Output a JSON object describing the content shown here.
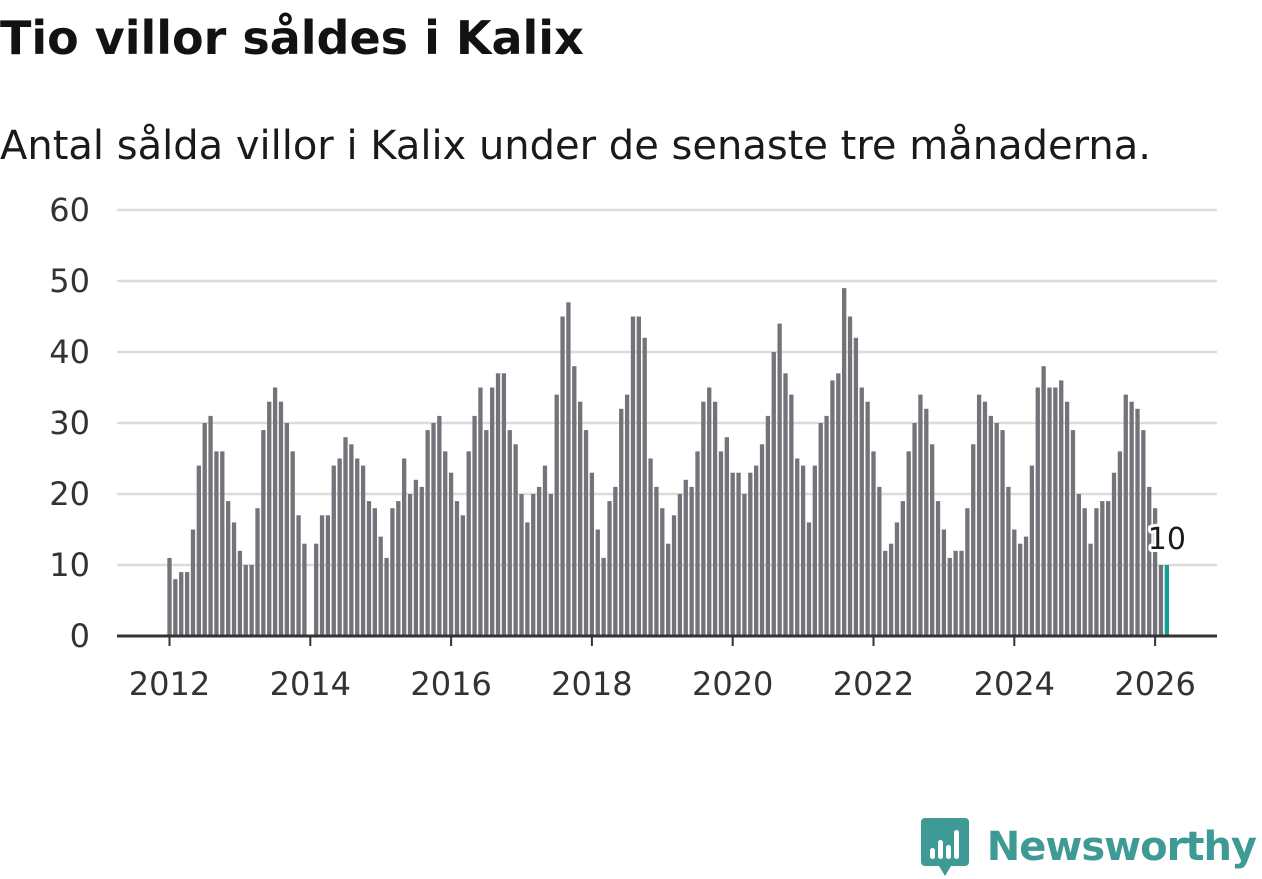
{
  "title": "Tio villor såldes i Kalix",
  "subtitle": "Antal sålda villor i Kalix under de senaste tre månaderna.",
  "brand": {
    "name": "Newsworthy",
    "icon": "newsworthy-logo-icon",
    "color": "#3d9a94"
  },
  "colors": {
    "bar": "#747379",
    "highlight": "#139c94",
    "grid": "#dcdcdc",
    "axis": "#333333"
  },
  "chart_data": {
    "type": "bar",
    "title": "Tio villor såldes i Kalix",
    "subtitle": "Antal sålda villor i Kalix under de senaste tre månaderna.",
    "xlabel": "",
    "ylabel": "",
    "ylim": [
      0,
      60
    ],
    "yticks": [
      "0",
      "10",
      "20",
      "30",
      "40",
      "50",
      "60"
    ],
    "xticks": [
      "2012",
      "2014",
      "2016",
      "2018",
      "2020",
      "2022",
      "2024",
      "2026"
    ],
    "grid": true,
    "start": "2012-01",
    "end": "2026-03",
    "frequency": "monthly",
    "values": [
      11,
      8,
      9,
      9,
      15,
      24,
      30,
      31,
      26,
      26,
      19,
      16,
      12,
      10,
      10,
      18,
      29,
      33,
      35,
      33,
      30,
      26,
      17,
      13,
      0,
      13,
      17,
      17,
      24,
      25,
      28,
      27,
      25,
      24,
      19,
      18,
      14,
      11,
      18,
      19,
      25,
      20,
      22,
      21,
      29,
      30,
      31,
      26,
      23,
      19,
      17,
      26,
      31,
      35,
      29,
      35,
      37,
      37,
      29,
      27,
      20,
      16,
      20,
      21,
      24,
      20,
      34,
      45,
      47,
      38,
      33,
      29,
      23,
      15,
      11,
      19,
      21,
      32,
      34,
      45,
      45,
      42,
      25,
      21,
      18,
      13,
      17,
      20,
      22,
      21,
      26,
      33,
      35,
      33,
      26,
      28,
      23,
      23,
      20,
      23,
      24,
      27,
      31,
      40,
      44,
      37,
      34,
      25,
      24,
      16,
      24,
      30,
      31,
      36,
      37,
      49,
      45,
      42,
      35,
      33,
      26,
      21,
      12,
      13,
      16,
      19,
      26,
      30,
      34,
      32,
      27,
      19,
      15,
      11,
      12,
      12,
      18,
      27,
      34,
      33,
      31,
      30,
      29,
      21,
      15,
      13,
      14,
      24,
      35,
      38,
      35,
      35,
      36,
      33,
      29,
      20,
      18,
      13,
      18,
      19,
      19,
      23,
      26,
      34,
      33,
      32,
      29,
      21,
      18,
      10,
      10
    ],
    "highlight_last": true,
    "annotation": "10"
  }
}
